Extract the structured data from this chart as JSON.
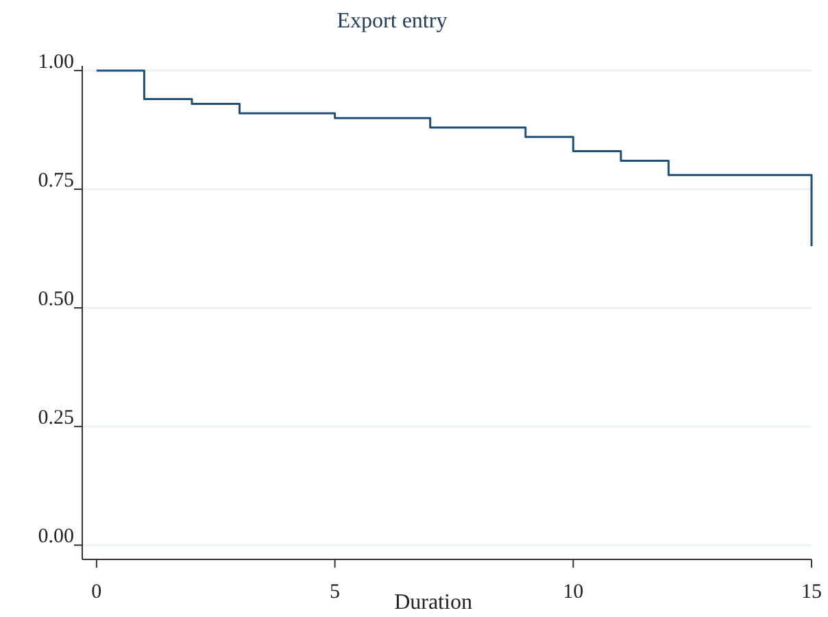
{
  "chart_data": {
    "type": "step",
    "title": "Export entry",
    "xlabel": "Duration",
    "x": [
      0,
      1,
      2,
      3,
      5,
      6,
      7,
      9,
      10,
      11,
      12,
      15
    ],
    "series": [
      {
        "color": "#1f4e79",
        "values": [
          1,
          0.94,
          0.93,
          0.91,
          0.9,
          0.9,
          0.88,
          0.86,
          0.83,
          0.81,
          0.78,
          0.63
        ]
      }
    ],
    "xlim": [
      -0.3,
      15
    ],
    "xticks": [
      0,
      5,
      10,
      15
    ],
    "ylim": [
      -0.03,
      1.01
    ],
    "yticks": [
      {
        "value": 0,
        "label": "0.00"
      },
      {
        "value": 0.25,
        "label": "0.25"
      },
      {
        "value": 0.5,
        "label": "0.50"
      },
      {
        "value": 0.75,
        "label": "0.75"
      },
      {
        "value": 1,
        "label": "1.00"
      }
    ],
    "grid": "y"
  }
}
